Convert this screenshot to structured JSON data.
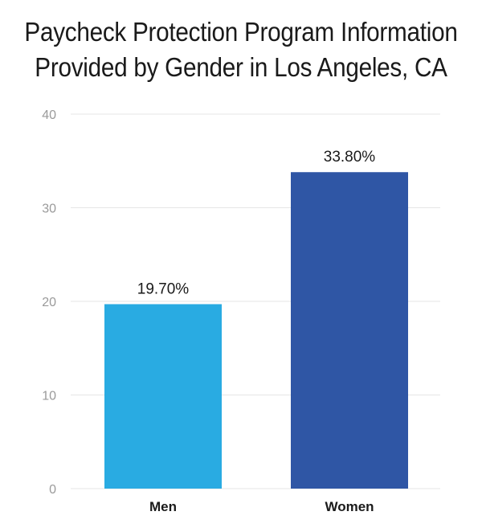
{
  "colors": {
    "men": "#29abe2",
    "women": "#2f56a5",
    "grid": "#e6e6e6",
    "tick": "#9a9a9a"
  },
  "chart_data": {
    "type": "bar",
    "title_lines": [
      "Paycheck Protection Program Information",
      "Provided by Gender in Los Angeles, CA"
    ],
    "categories": [
      "Men",
      "Women"
    ],
    "values": [
      19.7,
      33.8
    ],
    "data_labels": [
      "19.70%",
      "33.80%"
    ],
    "ylim": [
      0,
      40
    ],
    "yticks": [
      0,
      10,
      20,
      30,
      40
    ],
    "xlabel": "",
    "ylabel": "",
    "grid": true,
    "legend": "none"
  }
}
